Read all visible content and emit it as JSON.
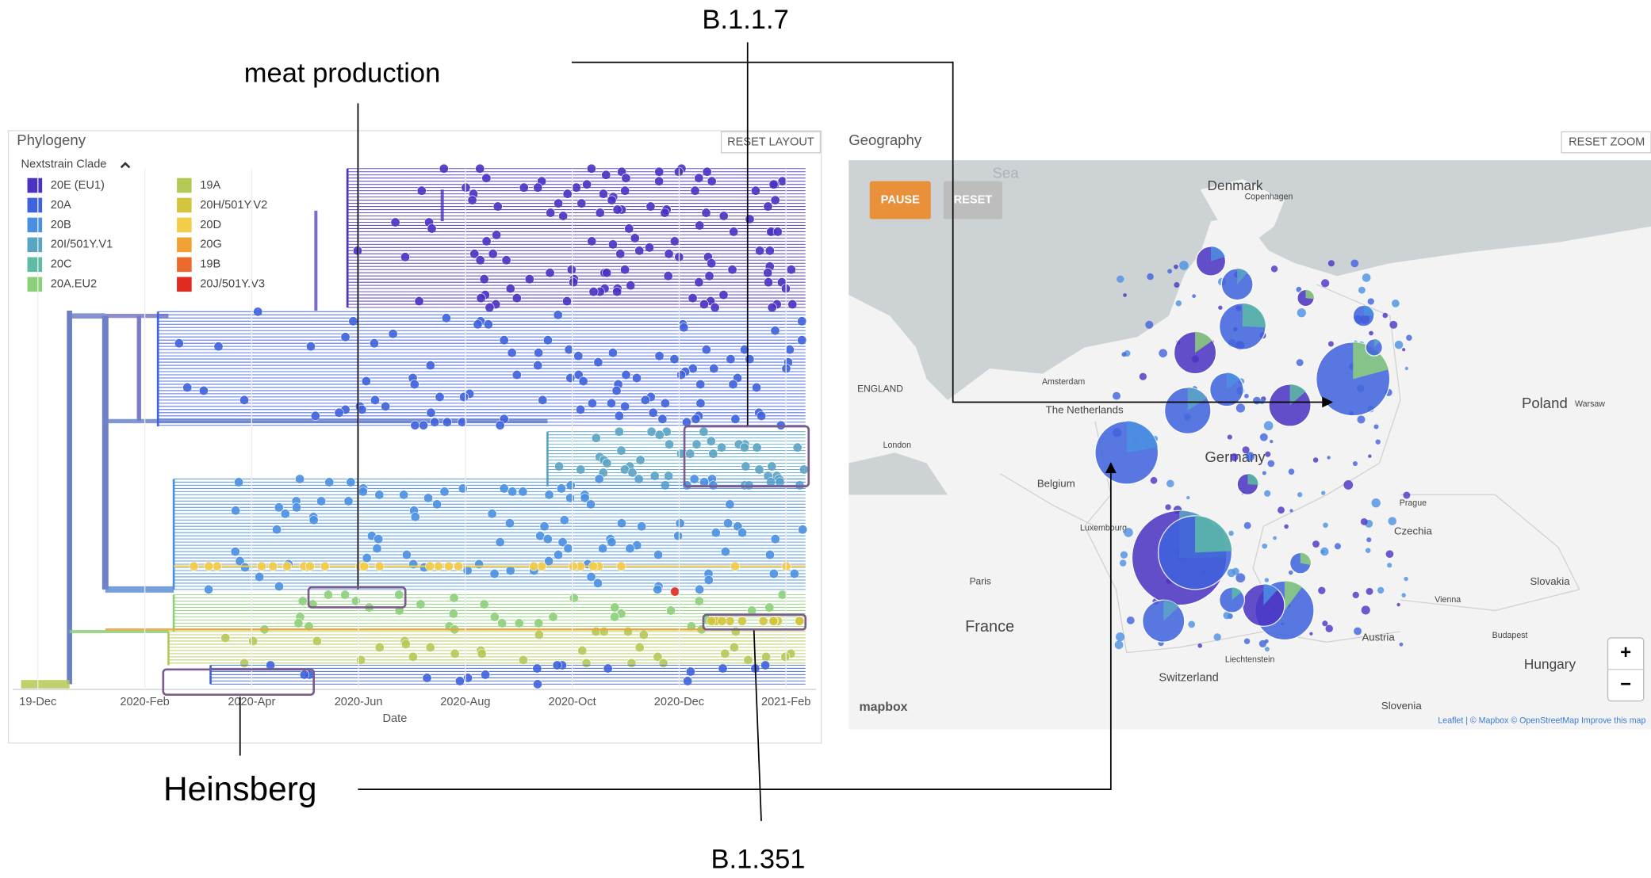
{
  "annotations": {
    "b117": "B.1.1.7",
    "meat": "meat production",
    "heinsberg": "Heinsberg",
    "b1351": "B.1.351"
  },
  "phylogeny": {
    "title": "Phylogeny",
    "reset_button": "RESET LAYOUT",
    "legend_title": "Nextstrain Clade",
    "legend": [
      {
        "name": "20E (EU1)",
        "color": "#4b32c3"
      },
      {
        "name": "20A",
        "color": "#3f62dd"
      },
      {
        "name": "20B",
        "color": "#4a90e2"
      },
      {
        "name": "20I/501Y.V1",
        "color": "#5aa4c4"
      },
      {
        "name": "20C",
        "color": "#5dbba6"
      },
      {
        "name": "20A.EU2",
        "color": "#8dd07a"
      },
      {
        "name": "19A",
        "color": "#b5c957"
      },
      {
        "name": "20H/501Y.V2",
        "color": "#d3c53e"
      },
      {
        "name": "20D",
        "color": "#f2cd48"
      },
      {
        "name": "20G",
        "color": "#f0a232"
      },
      {
        "name": "19B",
        "color": "#ec6a2c"
      },
      {
        "name": "20J/501Y.V3",
        "color": "#df2a1f"
      }
    ],
    "x_ticks": [
      "19-Dec",
      "2020-Feb",
      "2020-Apr",
      "2020-Jun",
      "2020-Aug",
      "2020-Oct",
      "2020-Dec",
      "2021-Feb"
    ],
    "x_label": "Date"
  },
  "geography": {
    "title": "Geography",
    "pause_button": "PAUSE",
    "reset_button": "RESET",
    "reset_zoom_button": "RESET ZOOM",
    "zoom_in": "+",
    "zoom_out": "−",
    "logo": "mapbox",
    "attribution": "Leaflet | © Mapbox © OpenStreetMap Improve this map",
    "places": [
      {
        "name": "Sea"
      },
      {
        "name": "Denmark"
      },
      {
        "name": "Copenhagen"
      },
      {
        "name": "ENGLAND"
      },
      {
        "name": "London"
      },
      {
        "name": "The Netherlands"
      },
      {
        "name": "Amsterdam"
      },
      {
        "name": "Belgium"
      },
      {
        "name": "Luxembourg"
      },
      {
        "name": "Germany"
      },
      {
        "name": "Paris"
      },
      {
        "name": "France"
      },
      {
        "name": "Switzerland"
      },
      {
        "name": "Liechtenstein"
      },
      {
        "name": "Austria"
      },
      {
        "name": "Czechia"
      },
      {
        "name": "Prague"
      },
      {
        "name": "Poland"
      },
      {
        "name": "Warsaw"
      },
      {
        "name": "Slovakia"
      },
      {
        "name": "Vienna"
      },
      {
        "name": "Budapest"
      },
      {
        "name": "Hungary"
      },
      {
        "name": "Slovenia"
      }
    ]
  }
}
